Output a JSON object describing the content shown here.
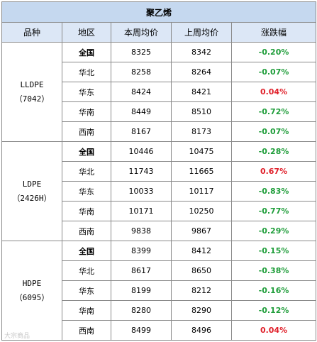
{
  "title": "聚乙烯",
  "headers": [
    "品种",
    "地区",
    "本周均价",
    "上周均价",
    "涨跌幅"
  ],
  "groups": [
    {
      "product_name": "LLDPE",
      "product_code": "（7042）",
      "rows": [
        {
          "region": "全国",
          "bold": true,
          "this_week": "8325",
          "last_week": "8342",
          "change": "-0.20%",
          "dir": "down"
        },
        {
          "region": "华北",
          "bold": false,
          "this_week": "8258",
          "last_week": "8264",
          "change": "-0.07%",
          "dir": "down"
        },
        {
          "region": "华东",
          "bold": false,
          "this_week": "8424",
          "last_week": "8421",
          "change": "0.04%",
          "dir": "up"
        },
        {
          "region": "华南",
          "bold": false,
          "this_week": "8449",
          "last_week": "8510",
          "change": "-0.72%",
          "dir": "down"
        },
        {
          "region": "西南",
          "bold": false,
          "this_week": "8167",
          "last_week": "8173",
          "change": "-0.07%",
          "dir": "down"
        }
      ]
    },
    {
      "product_name": "LDPE",
      "product_code": "（2426H）",
      "rows": [
        {
          "region": "全国",
          "bold": true,
          "this_week": "10446",
          "last_week": "10475",
          "change": "-0.28%",
          "dir": "down"
        },
        {
          "region": "华北",
          "bold": false,
          "this_week": "11743",
          "last_week": "11665",
          "change": "0.67%",
          "dir": "up"
        },
        {
          "region": "华东",
          "bold": false,
          "this_week": "10033",
          "last_week": "10117",
          "change": "-0.83%",
          "dir": "down"
        },
        {
          "region": "华南",
          "bold": false,
          "this_week": "10171",
          "last_week": "10250",
          "change": "-0.77%",
          "dir": "down"
        },
        {
          "region": "西南",
          "bold": false,
          "this_week": "9838",
          "last_week": "9867",
          "change": "-0.29%",
          "dir": "down"
        }
      ]
    },
    {
      "product_name": "HDPE",
      "product_code": "（6095）",
      "rows": [
        {
          "region": "全国",
          "bold": true,
          "this_week": "8399",
          "last_week": "8412",
          "change": "-0.15%",
          "dir": "down"
        },
        {
          "region": "华北",
          "bold": false,
          "this_week": "8617",
          "last_week": "8650",
          "change": "-0.38%",
          "dir": "down"
        },
        {
          "region": "华东",
          "bold": false,
          "this_week": "8199",
          "last_week": "8212",
          "change": "-0.16%",
          "dir": "down"
        },
        {
          "region": "华南",
          "bold": false,
          "this_week": "8280",
          "last_week": "8290",
          "change": "-0.12%",
          "dir": "down"
        },
        {
          "region": "西南",
          "bold": false,
          "this_week": "8499",
          "last_week": "8496",
          "change": "0.04%",
          "dir": "up"
        }
      ]
    }
  ],
  "colors": {
    "title_bg": "#c5d8ef",
    "header_bg": "#dce7f6",
    "up": "#e0202a",
    "down": "#1f9d3a",
    "border": "#8a8a8a"
  },
  "watermark": "大宗商品"
}
